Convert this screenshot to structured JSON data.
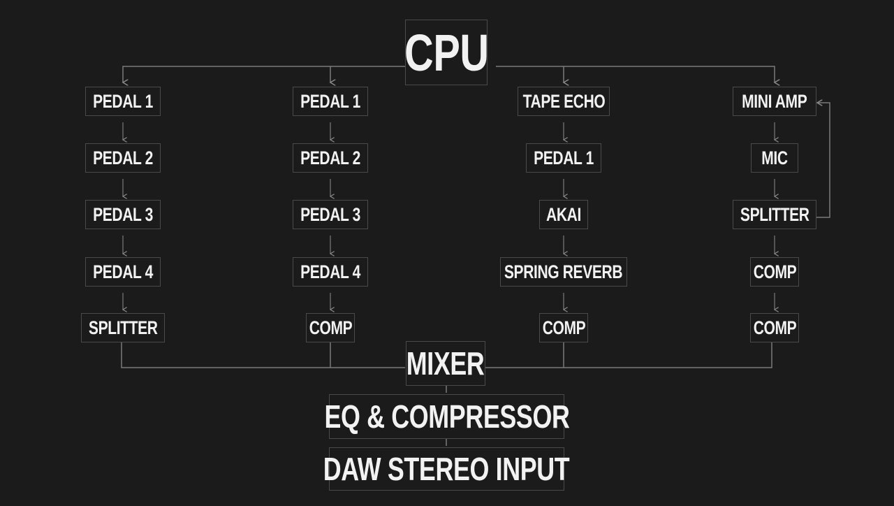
{
  "cpu": "CPU",
  "columns": [
    [
      "PEDAL 1",
      "PEDAL 2",
      "PEDAL 3",
      "PEDAL 4",
      "SPLITTER"
    ],
    [
      "PEDAL 1",
      "PEDAL 2",
      "PEDAL 3",
      "PEDAL 4",
      "COMP"
    ],
    [
      "TAPE ECHO",
      "PEDAL 1",
      "AKAI",
      "SPRING REVERB",
      "COMP"
    ],
    [
      "MINI AMP",
      "MIC",
      "SPLITTER",
      "COMP",
      "COMP"
    ]
  ],
  "mixer": "MIXER",
  "eq": "EQ & COMPRESSOR",
  "daw": "DAW STEREO INPUT",
  "colors": {
    "background": "#1b1b1b",
    "text": "#f2f2f2",
    "lines": "#7a7a7a"
  }
}
